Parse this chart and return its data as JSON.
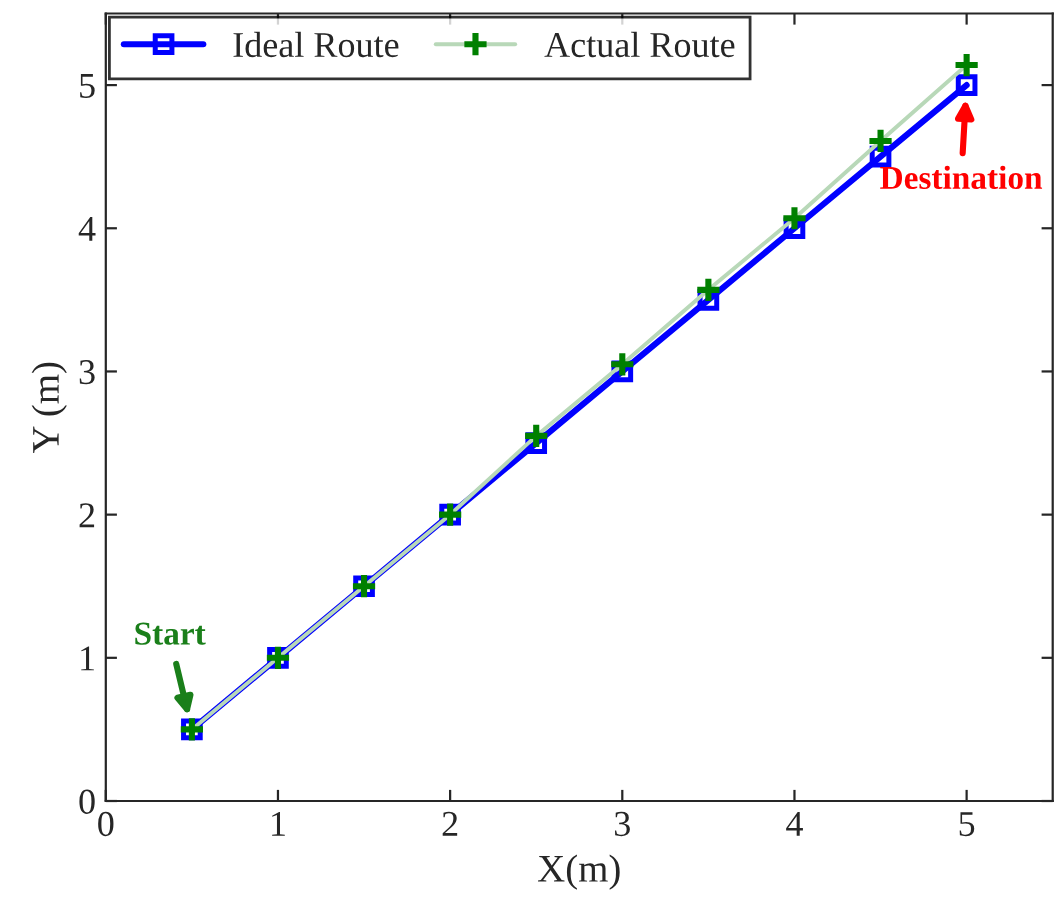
{
  "chart_data": {
    "type": "line",
    "xlabel": "X(m)",
    "ylabel": "Y (m)",
    "xlim": [
      0,
      5.5
    ],
    "xticks": [
      0,
      1,
      2,
      3,
      4,
      5
    ],
    "ylim": [
      0,
      5.5
    ],
    "yticks": [
      0,
      1,
      2,
      3,
      4,
      5
    ],
    "grid": false,
    "legend": "top left",
    "series": [
      {
        "name": "Ideal Route",
        "color": "#0000ff",
        "marker": "square",
        "x": [
          0.5,
          1,
          1.5,
          2,
          2.5,
          3,
          3.5,
          4,
          4.5,
          5
        ],
        "values": [
          0.5,
          1,
          1.5,
          2,
          2.5,
          3,
          3.5,
          4,
          4.5,
          5
        ]
      },
      {
        "name": "Actual Route",
        "color": "#008000",
        "marker": "cross",
        "x": [
          0.5,
          1,
          1.5,
          2,
          2.5,
          3,
          3.5,
          4,
          4.5,
          5
        ],
        "values": [
          0.5,
          1,
          1.5,
          2,
          2.55,
          3.05,
          3.57,
          4.07,
          4.61,
          5.14
        ]
      }
    ],
    "annotations": [
      {
        "text": "Start",
        "x": 0.5,
        "y": 0.5
      },
      {
        "text": "Destination",
        "x": 5,
        "y": 5
      }
    ]
  }
}
